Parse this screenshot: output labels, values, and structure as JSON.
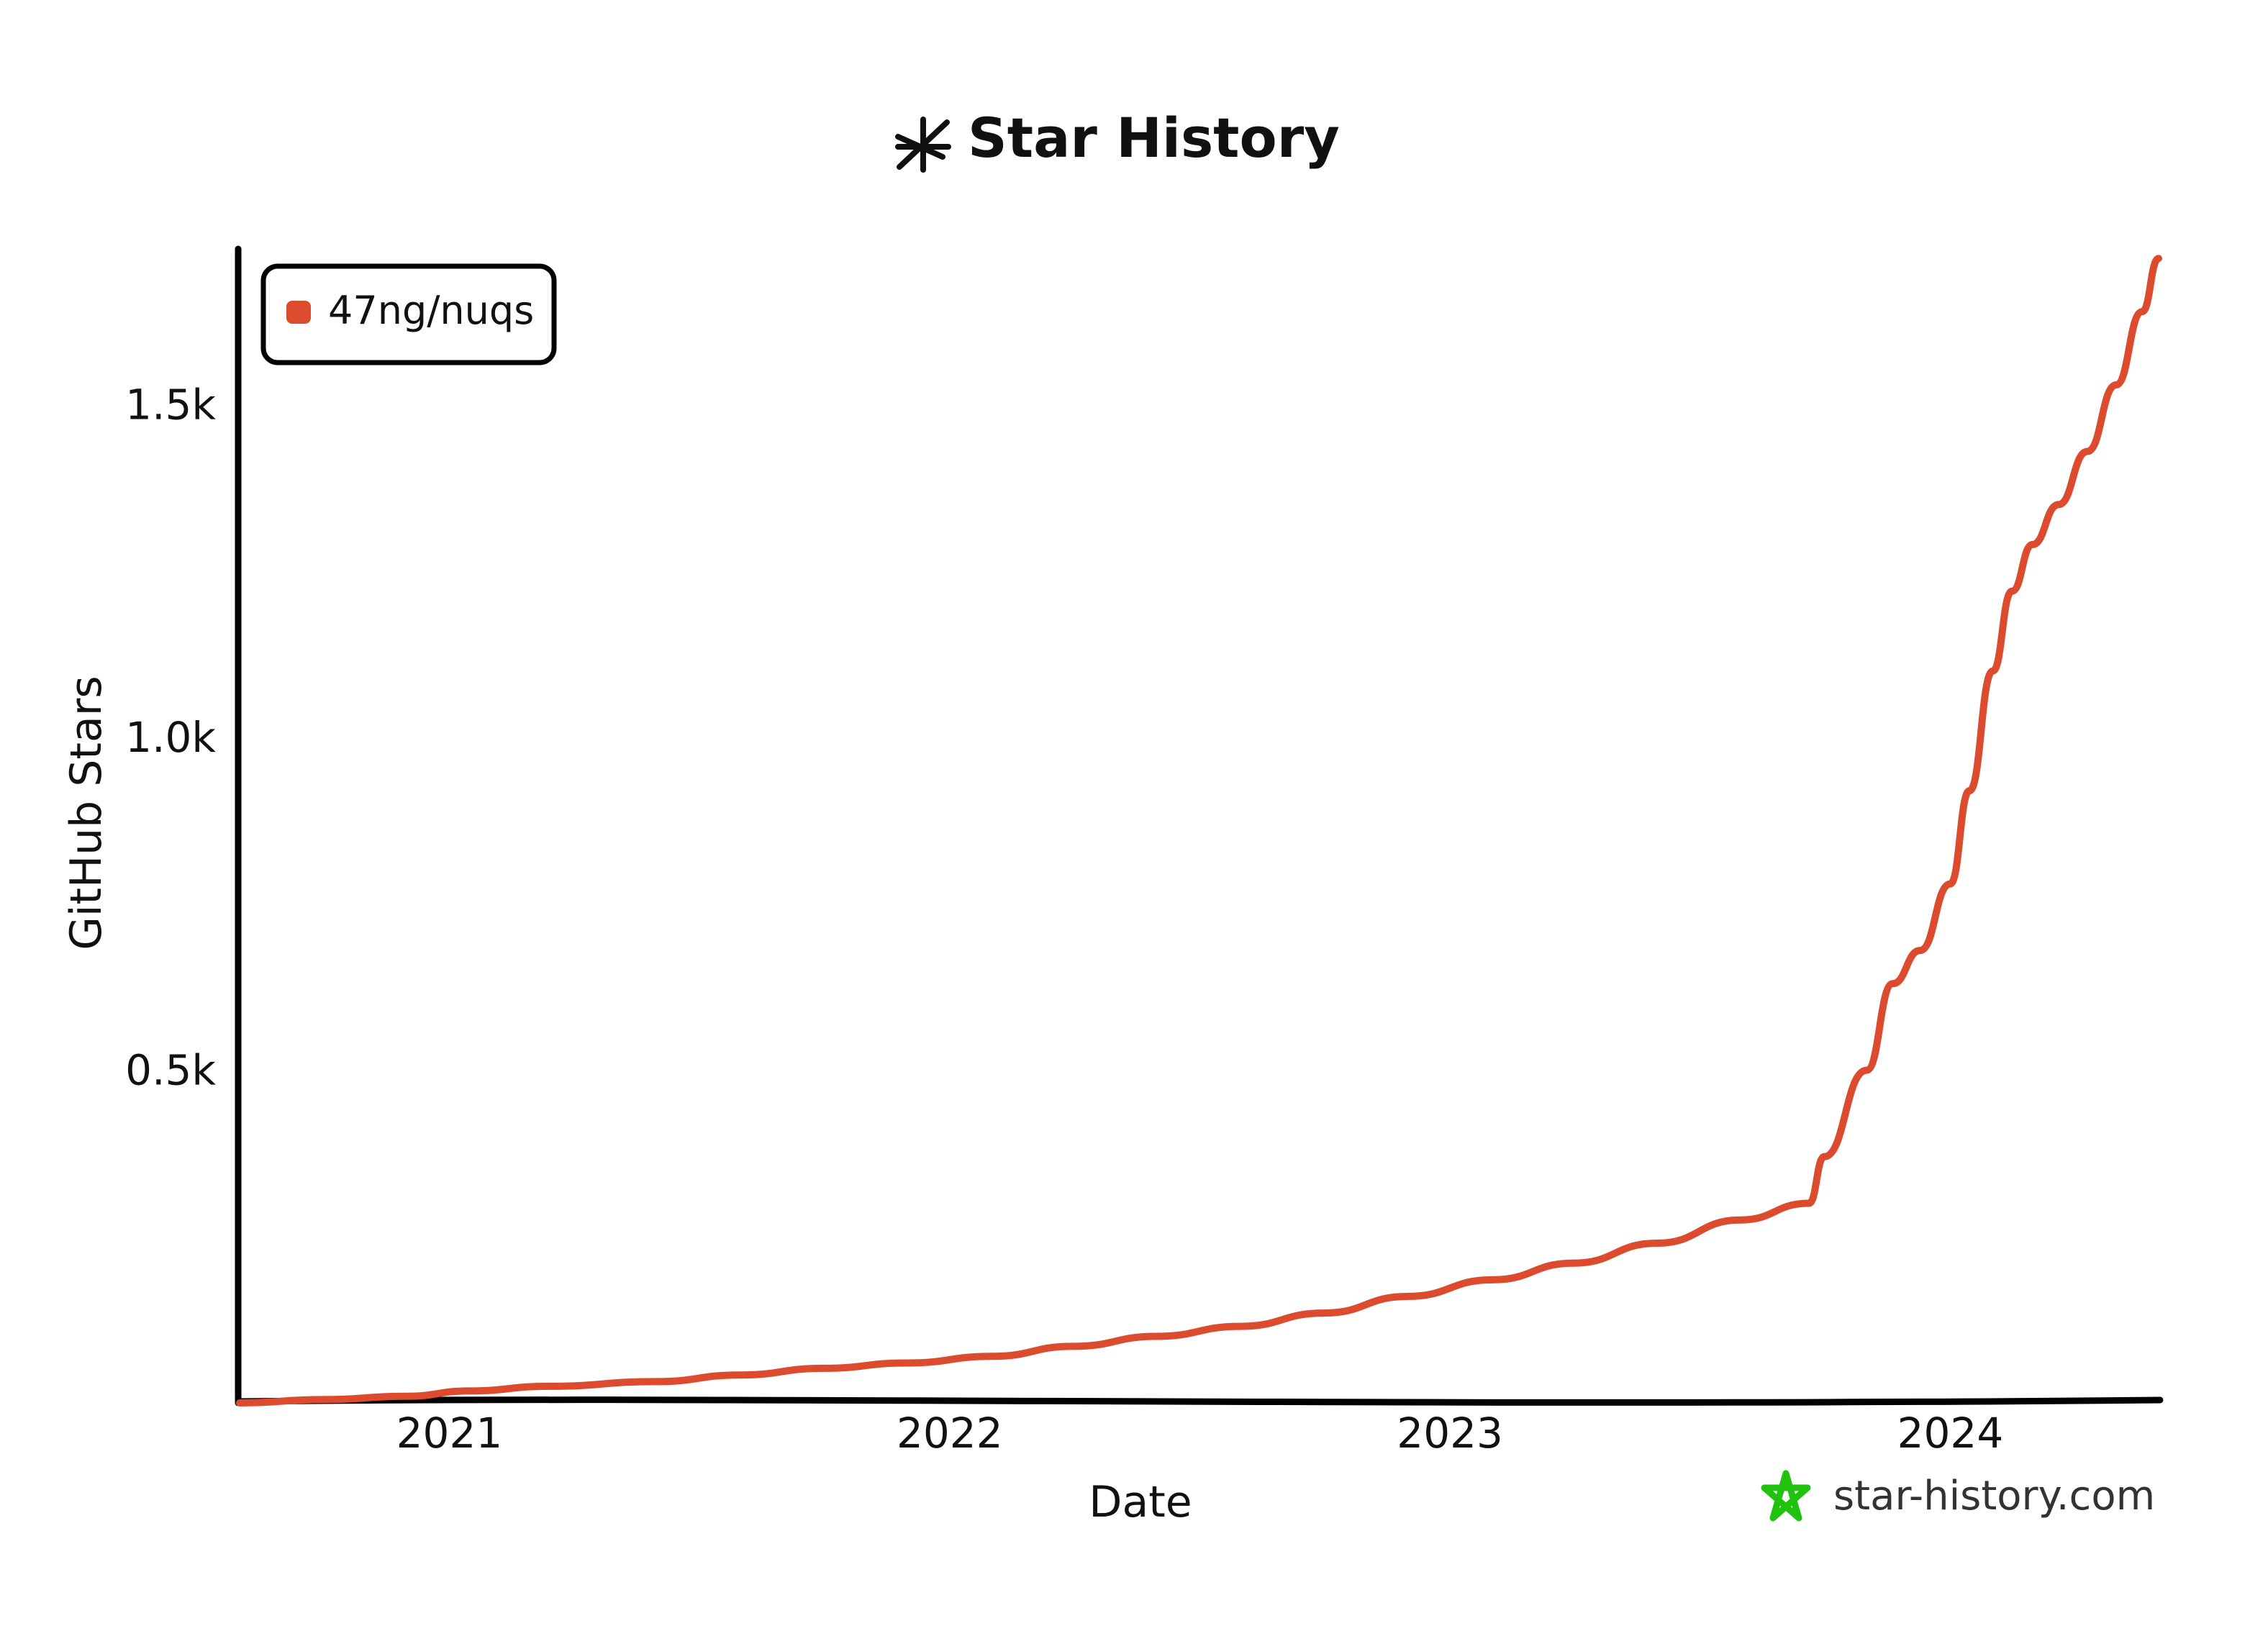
{
  "chart_data": {
    "type": "line",
    "title": "Star History",
    "xlabel": "Date",
    "ylabel": "GitHub Stars",
    "x_ticks": [
      "2021",
      "2022",
      "2023",
      "2024"
    ],
    "y_ticks": [
      "0.5k",
      "1.0k",
      "1.5k"
    ],
    "y_tick_values": [
      500,
      1000,
      1500
    ],
    "xlim": [
      "2020-08-01",
      "2024-06-01"
    ],
    "ylim": [
      0,
      1730
    ],
    "grid": false,
    "legend_position": "top-left",
    "series": [
      {
        "name": "47ng/nuqs",
        "color": "#dd4b2f",
        "x": [
          "2020-08-01",
          "2020-10-01",
          "2020-12-01",
          "2021-01-15",
          "2021-03-15",
          "2021-06-01",
          "2021-08-01",
          "2021-10-01",
          "2021-12-01",
          "2022-02-01",
          "2022-04-01",
          "2022-06-01",
          "2022-08-01",
          "2022-10-01",
          "2022-12-01",
          "2023-02-01",
          "2023-04-01",
          "2023-06-01",
          "2023-08-01",
          "2023-09-20",
          "2023-10-01",
          "2023-11-01",
          "2023-11-20",
          "2023-12-10",
          "2024-01-01",
          "2024-01-15",
          "2024-02-01",
          "2024-02-15",
          "2024-03-01",
          "2024-03-20",
          "2024-04-10",
          "2024-05-01",
          "2024-05-20",
          "2024-06-01"
        ],
        "values": [
          0,
          5,
          10,
          18,
          25,
          32,
          42,
          52,
          60,
          70,
          85,
          100,
          115,
          135,
          160,
          185,
          210,
          240,
          275,
          300,
          370,
          500,
          630,
          680,
          780,
          920,
          1100,
          1220,
          1290,
          1350,
          1430,
          1530,
          1640,
          1720
        ]
      }
    ]
  },
  "watermark": {
    "text": "star-history.com",
    "color": "#20c20e"
  }
}
